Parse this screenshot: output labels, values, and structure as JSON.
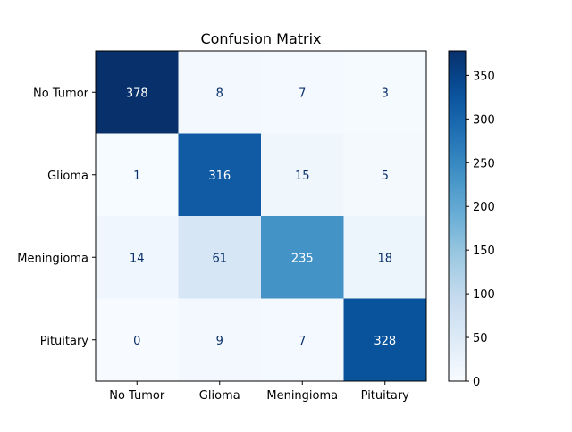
{
  "chart_data": {
    "type": "heatmap",
    "title": "Confusion Matrix",
    "xlabel": "",
    "ylabel": "",
    "x_categories": [
      "No Tumor",
      "Glioma",
      "Meningioma",
      "Pituitary"
    ],
    "y_categories": [
      "No Tumor",
      "Glioma",
      "Meningioma",
      "Pituitary"
    ],
    "matrix": [
      [
        378,
        8,
        7,
        3
      ],
      [
        1,
        316,
        15,
        5
      ],
      [
        14,
        61,
        235,
        18
      ],
      [
        0,
        9,
        7,
        328
      ]
    ],
    "colormap": "Blues",
    "vmin": 0,
    "vmax": 378,
    "colorbar_ticks": [
      0,
      50,
      100,
      150,
      200,
      250,
      300,
      350
    ],
    "grid": false,
    "colors": {
      "light_text": "#ffffff",
      "dark_text": "#08306b"
    }
  }
}
